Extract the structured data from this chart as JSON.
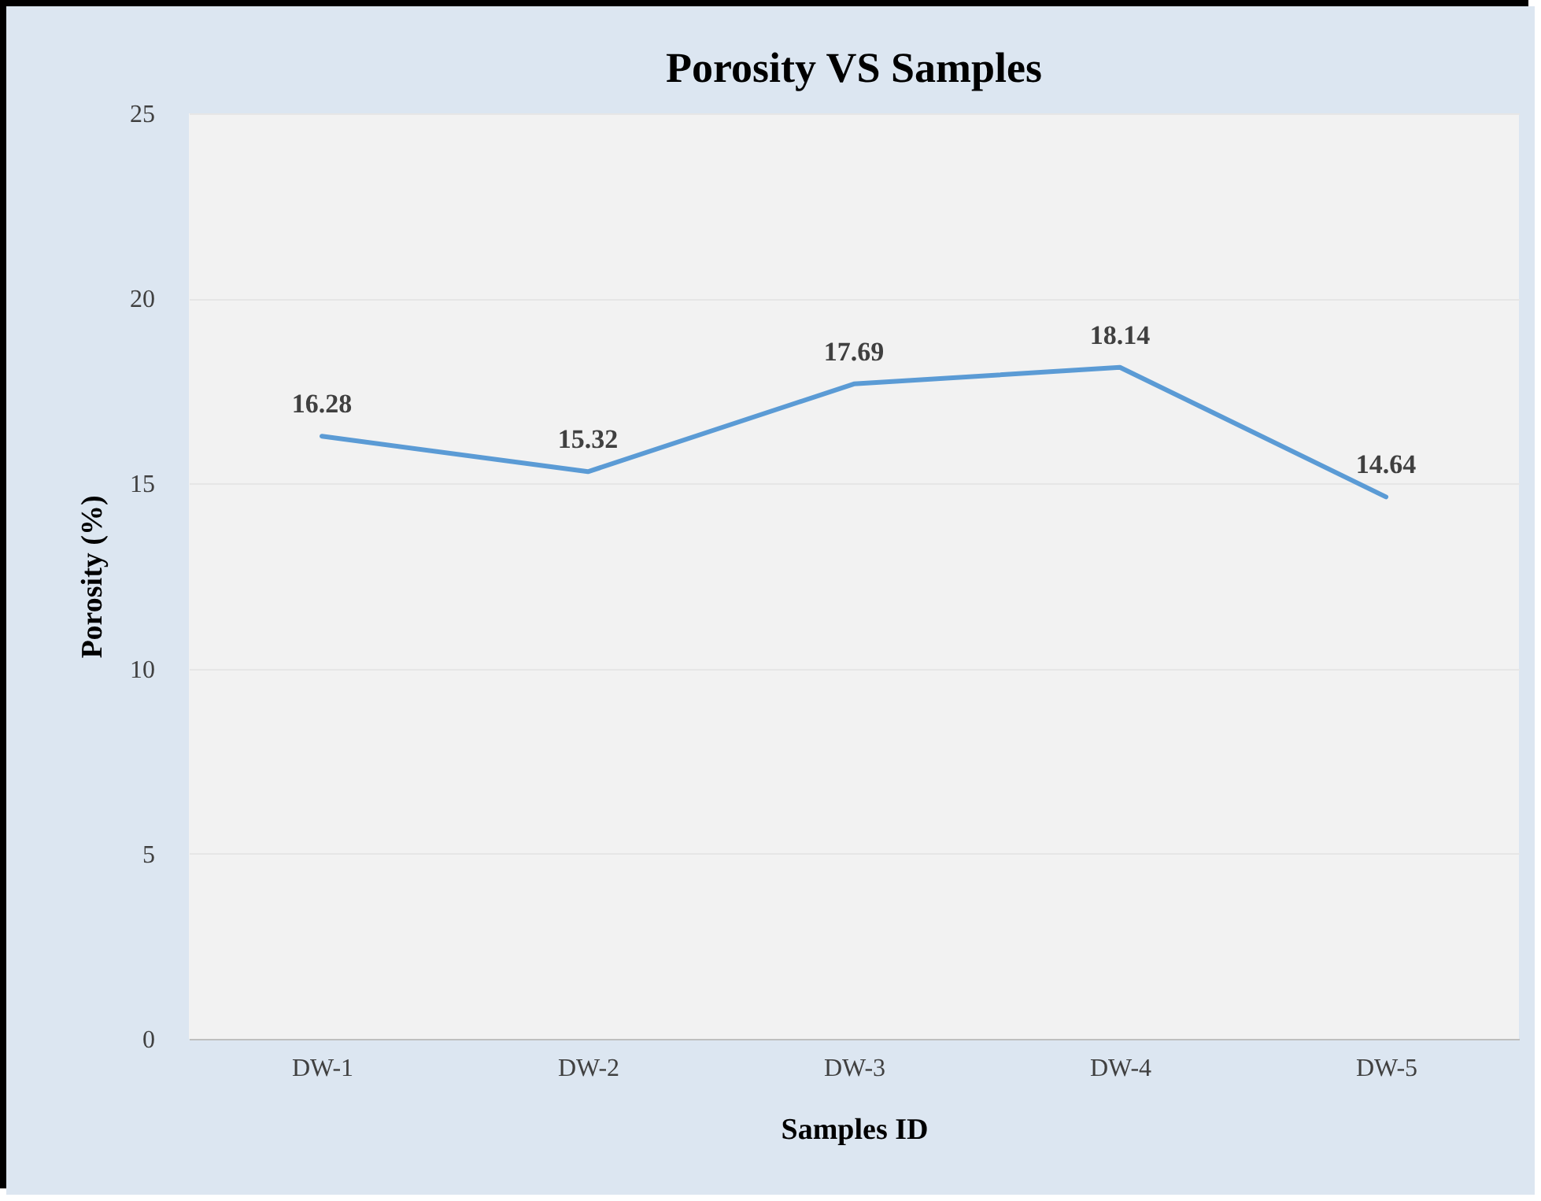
{
  "chart_data": {
    "type": "line",
    "title": "Porosity VS Samples",
    "xlabel": "Samples ID",
    "ylabel": "Porosity (%)",
    "categories": [
      "DW-1",
      "DW-2",
      "DW-3",
      "DW-4",
      "DW-5"
    ],
    "series": [
      {
        "color": "#5b9bd5",
        "values": [
          16.28,
          15.32,
          17.69,
          18.14,
          14.64
        ]
      }
    ],
    "ylim": [
      0,
      25
    ],
    "yticks": [
      0,
      5,
      10,
      15,
      20,
      25
    ],
    "grid": "y",
    "data_labels": true,
    "marker": "none",
    "line_style": "solid"
  }
}
